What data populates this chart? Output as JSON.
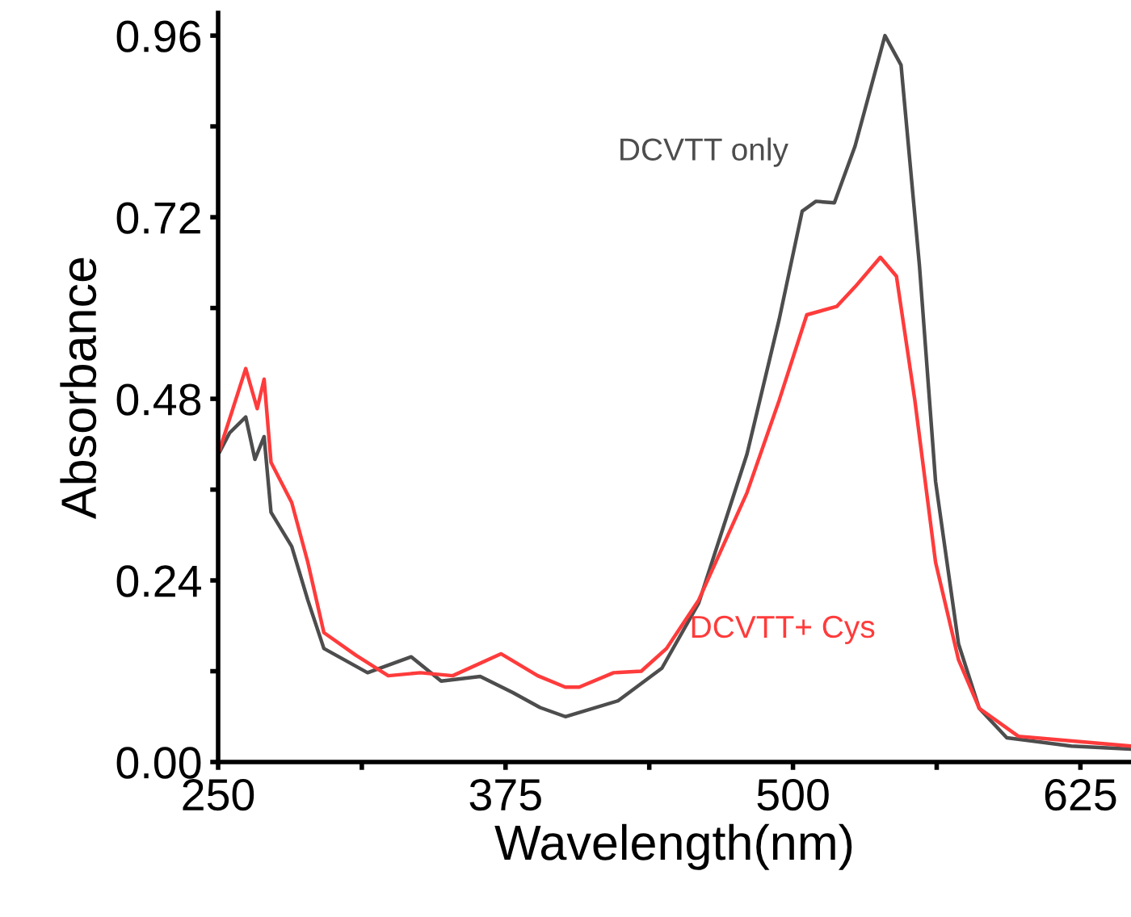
{
  "chart_data": {
    "type": "line",
    "xlabel": "Wavelength(nm)",
    "ylabel": "Absorbance",
    "xlim": [
      250,
      647
    ],
    "ylim": [
      0,
      0.99
    ],
    "xticks": [
      250,
      {
        "value": 312.5,
        "label": null
      },
      375,
      {
        "value": 437.5,
        "label": null
      },
      500,
      {
        "value": 562.5,
        "label": null
      },
      625
    ],
    "yticks": [
      {
        "value": 0,
        "label": "0.00"
      },
      {
        "value": 0.12,
        "label": null
      },
      0.24,
      {
        "value": 0.36,
        "label": null
      },
      0.48,
      {
        "value": 0.6,
        "label": null
      },
      0.72,
      {
        "value": 0.84,
        "label": null
      },
      0.96
    ],
    "grid": false,
    "legend": false,
    "marker": "none",
    "line_style": "solid",
    "series": [
      {
        "name": "DCVTT only",
        "color": "#4d4d4d",
        "x": [
          250.7,
          255,
          262,
          266,
          270,
          273,
          282,
          289,
          296,
          315,
          334,
          347,
          364,
          378,
          390,
          401,
          424,
          443,
          459,
          480,
          494,
          504,
          510,
          518,
          527,
          540,
          547,
          555,
          562,
          572,
          581,
          593,
          621,
          647
        ],
        "values": [
          0.41,
          0.435,
          0.456,
          0.4,
          0.43,
          0.33,
          0.285,
          0.214,
          0.15,
          0.118,
          0.139,
          0.107,
          0.113,
          0.092,
          0.072,
          0.06,
          0.081,
          0.124,
          0.21,
          0.407,
          0.585,
          0.728,
          0.741,
          0.739,
          0.814,
          0.96,
          0.921,
          0.656,
          0.371,
          0.156,
          0.071,
          0.032,
          0.021,
          0.017
        ]
      },
      {
        "name": "DCVTT+ Cys",
        "color": "#ff3b3b",
        "x": [
          250.7,
          256,
          262,
          267,
          270,
          273,
          282,
          289,
          296,
          310,
          324,
          338,
          352,
          373,
          389,
          401,
          407,
          422,
          434,
          445,
          459,
          480,
          494,
          506,
          519,
          527,
          538,
          545,
          553,
          562,
          572,
          581,
          598,
          647
        ],
        "values": [
          0.413,
          0.463,
          0.52,
          0.467,
          0.506,
          0.396,
          0.343,
          0.264,
          0.171,
          0.141,
          0.114,
          0.118,
          0.114,
          0.143,
          0.114,
          0.099,
          0.099,
          0.118,
          0.12,
          0.15,
          0.214,
          0.356,
          0.478,
          0.591,
          0.602,
          0.628,
          0.667,
          0.642,
          0.478,
          0.264,
          0.135,
          0.071,
          0.034,
          0.021
        ]
      }
    ]
  }
}
